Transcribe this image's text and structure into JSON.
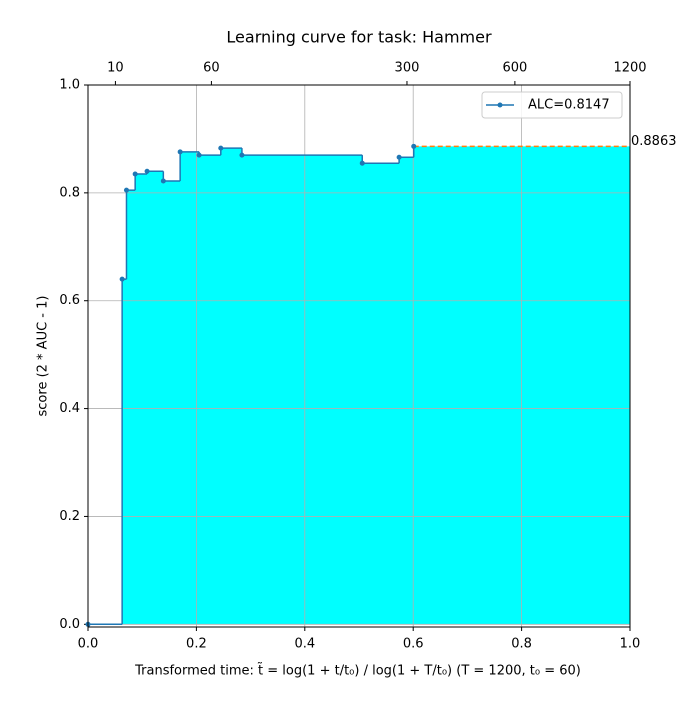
{
  "chart_data": {
    "type": "step",
    "title": "Learning curve for task: Hammer",
    "xlabel": "Transformed time: t̃ = log(1 + t/t₀) / log(1 + T/t₀)   (T = 1200,  t₀ = 60)",
    "ylabel": "score (2 * AUC - 1)",
    "x": [
      0,
      0.063,
      0.071,
      0.087,
      0.109,
      0.139,
      0.17,
      0.205,
      0.245,
      0.284,
      0.506,
      0.574,
      0.601
    ],
    "series": [
      {
        "name": "ALC=0.8147",
        "color": "#1f77b4",
        "values": [
          0,
          0.64,
          0.805,
          0.835,
          0.84,
          0.822,
          0.876,
          0.87,
          0.883,
          0.87,
          0.855,
          0.866,
          0.8863
        ]
      }
    ],
    "fill_color": "#00ffff",
    "final_line_color": "#ff7f0e",
    "final_label": "0.8863",
    "xlim": [
      0,
      1
    ],
    "ylim": [
      -0.005,
      1.0
    ],
    "xticks": [
      {
        "value": 0,
        "label": "0.0"
      },
      {
        "value": 0.2,
        "label": "0.2"
      },
      {
        "value": 0.4,
        "label": "0.4"
      },
      {
        "value": 0.6,
        "label": "0.6"
      },
      {
        "value": 0.8,
        "label": "0.8"
      },
      {
        "value": 1,
        "label": "1.0"
      }
    ],
    "x2ticks": [
      {
        "value": 0.0506,
        "label": "10"
      },
      {
        "value": 0.2277,
        "label": "60"
      },
      {
        "value": 0.5885,
        "label": "300"
      },
      {
        "value": 0.7876,
        "label": "600"
      },
      {
        "value": 1,
        "label": "1200"
      }
    ],
    "yticks": [
      {
        "value": 0,
        "label": "0.0"
      },
      {
        "value": 0.2,
        "label": "0.2"
      },
      {
        "value": 0.4,
        "label": "0.4"
      },
      {
        "value": 0.6,
        "label": "0.6"
      },
      {
        "value": 0.8,
        "label": "0.8"
      },
      {
        "value": 1,
        "label": "1.0"
      }
    ],
    "grid": true,
    "legend": "upper right"
  }
}
